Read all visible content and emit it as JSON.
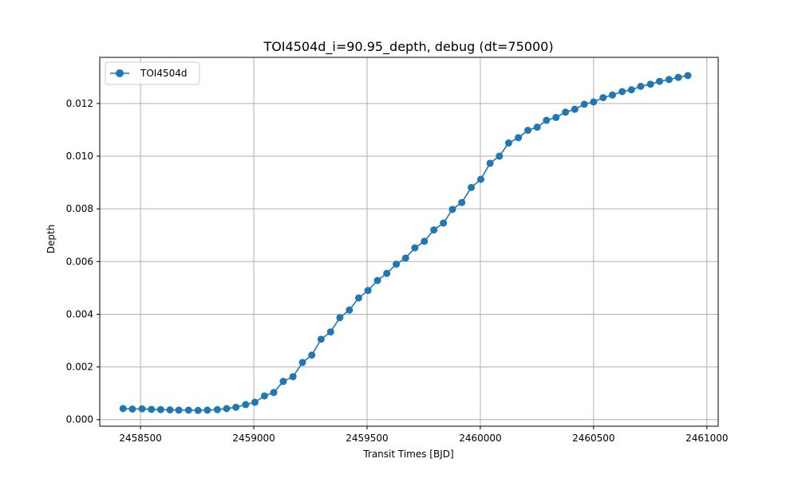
{
  "chart_data": {
    "type": "line",
    "title": "TOI4504d_i=90.95_depth, debug (dt=75000)",
    "xlabel": "Transit Times [BJD]",
    "ylabel": "Depth",
    "xlim": [
      2458320,
      2461050
    ],
    "ylim": [
      -0.00025,
      0.01375
    ],
    "xticks": [
      2458500,
      2459000,
      2459500,
      2460000,
      2460500,
      2461000
    ],
    "xtick_labels": [
      "2458500",
      "2459000",
      "2459500",
      "2460000",
      "2460500",
      "2461000"
    ],
    "yticks": [
      0.0,
      0.002,
      0.004,
      0.006,
      0.008,
      0.01,
      0.012
    ],
    "ytick_labels": [
      "0.000",
      "0.002",
      "0.004",
      "0.006",
      "0.008",
      "0.010",
      "0.012"
    ],
    "grid": true,
    "legend_position": "top-left",
    "series": [
      {
        "name": "TOI4504d",
        "color": "#1f77b4",
        "marker": "circle",
        "x": [
          2458423,
          2458464,
          2458507,
          2458548,
          2458589,
          2458630,
          2458669,
          2458712,
          2458754,
          2458795,
          2458839,
          2458880,
          2458921,
          2458964,
          2459005,
          2459047,
          2459088,
          2459130,
          2459173,
          2459215,
          2459256,
          2459297,
          2459339,
          2459380,
          2459422,
          2459463,
          2459504,
          2459546,
          2459587,
          2459629,
          2459670,
          2459711,
          2459753,
          2459795,
          2459837,
          2459877,
          2459918,
          2459960,
          2460002,
          2460043,
          2460084,
          2460125,
          2460168,
          2460210,
          2460251,
          2460292,
          2460334,
          2460376,
          2460417,
          2460459,
          2460500,
          2460542,
          2460583,
          2460626,
          2460667,
          2460708,
          2460751,
          2460791,
          2460833,
          2460874,
          2460916
        ],
        "y": [
          0.00042,
          0.0004,
          0.00041,
          0.00039,
          0.00038,
          0.00037,
          0.00036,
          0.00036,
          0.00035,
          0.00036,
          0.00038,
          0.00042,
          0.00047,
          0.00057,
          0.00066,
          0.0009,
          0.00103,
          0.00145,
          0.00163,
          0.00217,
          0.00245,
          0.00305,
          0.00333,
          0.00387,
          0.00416,
          0.00462,
          0.0049,
          0.00528,
          0.00555,
          0.0059,
          0.00613,
          0.00652,
          0.00677,
          0.0072,
          0.00746,
          0.00798,
          0.00824,
          0.00881,
          0.00912,
          0.00973,
          0.01,
          0.0105,
          0.0107,
          0.01098,
          0.0111,
          0.01136,
          0.01147,
          0.01167,
          0.01178,
          0.01197,
          0.01206,
          0.01222,
          0.01232,
          0.01245,
          0.01252,
          0.01265,
          0.01273,
          0.01284,
          0.01291,
          0.01299,
          0.01306
        ]
      }
    ]
  }
}
